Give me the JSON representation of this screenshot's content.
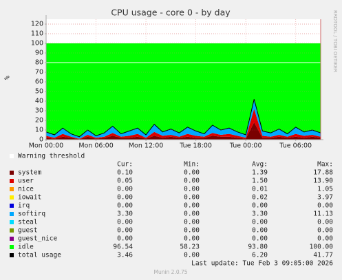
{
  "chart_data": {
    "type": "stacked-area",
    "title": "CPU usage - core 0 - by day",
    "y_label": "%",
    "side_label": "RRDTOOL / TOBI OETIKER",
    "x": [
      0,
      1,
      2,
      3,
      4,
      5,
      6,
      7,
      8,
      9,
      10,
      11,
      12,
      13,
      14,
      15,
      16,
      17,
      18,
      19,
      20,
      21,
      22,
      23,
      24,
      25,
      26,
      27,
      28,
      29,
      30,
      31,
      32,
      33
    ],
    "xlim": [
      0,
      33
    ],
    "xticks": [
      {
        "value": 0,
        "label": "Mon 00:00"
      },
      {
        "value": 6,
        "label": "Mon 06:00"
      },
      {
        "value": 12,
        "label": "Mon 12:00"
      },
      {
        "value": 18,
        "label": "Tue 18:00"
      },
      {
        "value": 24,
        "label": "Tue 00:00"
      },
      {
        "value": 30,
        "label": "Tue 06:00"
      }
    ],
    "ylim": [
      0,
      125
    ],
    "yticks": [
      0,
      10,
      20,
      30,
      40,
      50,
      60,
      70,
      80,
      90,
      100,
      110,
      120
    ],
    "grid": true,
    "warning": {
      "label": "Warning threshold",
      "value": 80
    },
    "headers": [
      "Cur:",
      "Min:",
      "Avg:",
      "Max:"
    ],
    "series": [
      {
        "name": "system",
        "color": "#7a0000",
        "style": "area",
        "stats": [
          "0.10",
          "0.00",
          "1.39",
          "17.88"
        ],
        "values": [
          2,
          1,
          3,
          2,
          0.5,
          3,
          1,
          2,
          4,
          2,
          2,
          3,
          1,
          4,
          2,
          3,
          2,
          3,
          2,
          2,
          4,
          3,
          3,
          2,
          1,
          18,
          2,
          2,
          3,
          2,
          3,
          2,
          3,
          2
        ]
      },
      {
        "name": "user",
        "color": "#dd0000",
        "style": "area",
        "stats": [
          "0.05",
          "0.00",
          "1.50",
          "13.90"
        ],
        "values": [
          2,
          1,
          3,
          1,
          0.5,
          2,
          1,
          1,
          3,
          1,
          2,
          3,
          1,
          4,
          2,
          2,
          1,
          3,
          2,
          1,
          3,
          2,
          3,
          2,
          1,
          14,
          2,
          1,
          2,
          1,
          3,
          2,
          2,
          1
        ]
      },
      {
        "name": "nice",
        "color": "#ff9900",
        "stats": [
          "0.00",
          "0.00",
          "0.01",
          "1.05"
        ]
      },
      {
        "name": "iowait",
        "color": "#ffee00",
        "stats": [
          "0.00",
          "0.00",
          "0.02",
          "3.97"
        ]
      },
      {
        "name": "irq",
        "color": "#0000dd",
        "stats": [
          "0.00",
          "0.00",
          "0.00",
          "0.00"
        ]
      },
      {
        "name": "softirq",
        "color": "#00a8ff",
        "style": "area",
        "stats": [
          "3.30",
          "0.00",
          "3.30",
          "11.13"
        ],
        "values": [
          4,
          3,
          6,
          3,
          2,
          5,
          2,
          4,
          7,
          3,
          5,
          6,
          3,
          8,
          4,
          6,
          4,
          7,
          5,
          3,
          8,
          5,
          6,
          4,
          3,
          10,
          5,
          4,
          6,
          3,
          7,
          4,
          5,
          4
        ]
      },
      {
        "name": "steal",
        "color": "#00ddff",
        "stats": [
          "0.00",
          "0.00",
          "0.00",
          "0.00"
        ]
      },
      {
        "name": "guest",
        "color": "#779900",
        "stats": [
          "0.00",
          "0.00",
          "0.00",
          "0.00"
        ]
      },
      {
        "name": "guest_nice",
        "color": "#880088",
        "stats": [
          "0.00",
          "0.00",
          "0.00",
          "0.00"
        ]
      },
      {
        "name": "idle",
        "color": "#00ff00",
        "style": "area",
        "stats": [
          "96.54",
          "58.23",
          "93.80",
          "100.00"
        ],
        "values": [
          92,
          95,
          88,
          94,
          97,
          90,
          96,
          93,
          86,
          94,
          91,
          88,
          95,
          84,
          92,
          89,
          93,
          87,
          91,
          94,
          85,
          90,
          88,
          92,
          95,
          58,
          91,
          93,
          89,
          94,
          87,
          92,
          90,
          93
        ]
      },
      {
        "name": "total usage",
        "color": "#000000",
        "style": "line",
        "stats": [
          "3.46",
          "0.00",
          "6.20",
          "41.77"
        ],
        "values": [
          8,
          5,
          12,
          6,
          3,
          10,
          4,
          7,
          14,
          6,
          9,
          12,
          5,
          16,
          8,
          11,
          7,
          13,
          9,
          6,
          15,
          10,
          12,
          8,
          5,
          42,
          9,
          7,
          11,
          6,
          13,
          8,
          10,
          7
        ]
      }
    ],
    "last_update": "Last update: Tue Feb  3 09:05:00 2026",
    "footer": "Munin 2.0.75"
  }
}
